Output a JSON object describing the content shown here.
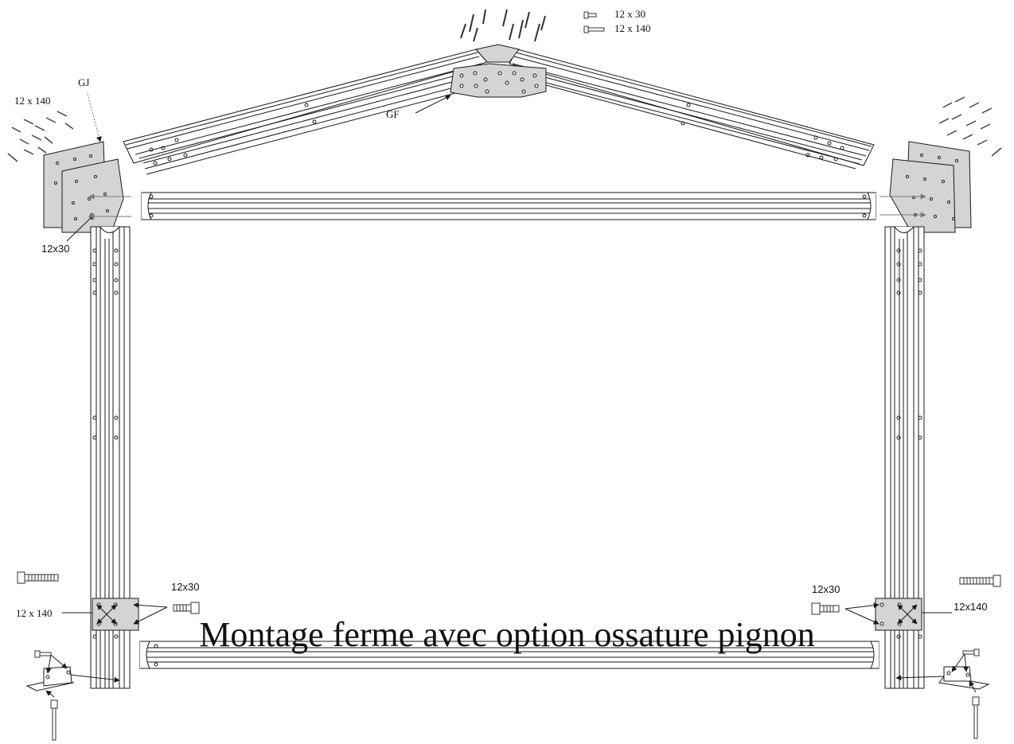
{
  "caption": "Montage ferme  avec option ossature pignon",
  "labels": {
    "top_short": "12 x 30",
    "top_long": "12 x 140",
    "gj": "GJ",
    "left_top_bolts": "12 x 140",
    "gf": "GF",
    "left_corner_screw": "12x30",
    "left_column_bolt": "12 x 140",
    "left_column_screw": "12x30",
    "right_column_screw": "12x30",
    "right_column_bolt": "12x140"
  },
  "colors": {
    "plate": "#d4d4d4",
    "line": "#1a1a1a",
    "paper": "#ffffff"
  }
}
